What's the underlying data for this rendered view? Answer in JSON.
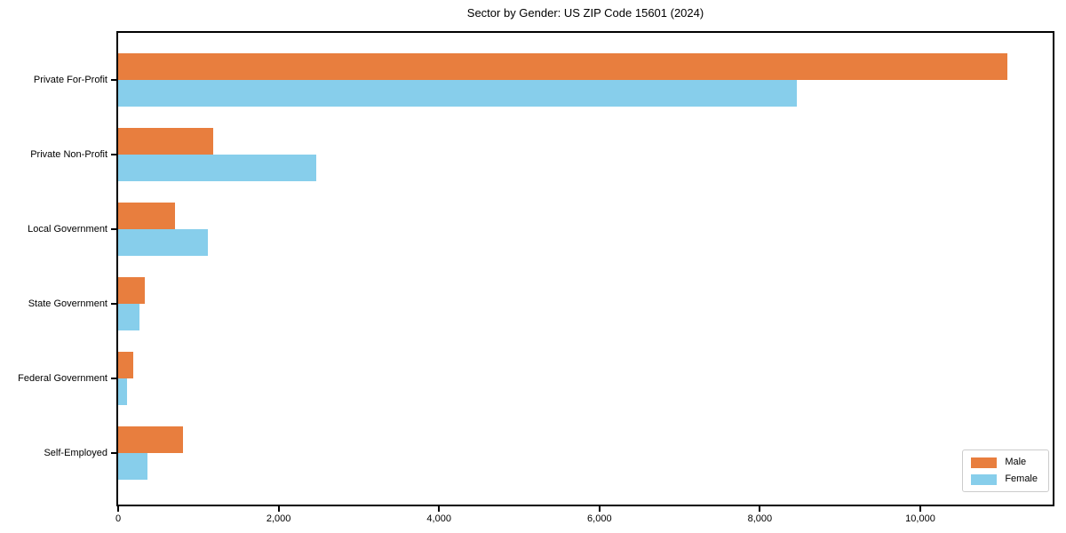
{
  "chart_data": {
    "type": "bar",
    "orientation": "horizontal",
    "title": "Sector by Gender: US ZIP Code 15601 (2024)",
    "categories": [
      "Private For-Profit",
      "Private Non-Profit",
      "Local Government",
      "State Government",
      "Federal Government",
      "Self-Employed"
    ],
    "series": [
      {
        "name": "Male",
        "color": "#e87e3e",
        "values": [
          11080,
          1180,
          705,
          330,
          190,
          805
        ]
      },
      {
        "name": "Female",
        "color": "#87ceeb",
        "values": [
          8460,
          2470,
          1115,
          265,
          110,
          365
        ]
      }
    ],
    "xlabel": "",
    "ylabel": "",
    "xlim": [
      0,
      11650
    ],
    "xticks": [
      0,
      2000,
      4000,
      6000,
      8000,
      10000
    ],
    "xtick_labels": [
      "0",
      "2,000",
      "4,000",
      "6,000",
      "8,000",
      "10,000"
    ],
    "grid": false,
    "legend_position": "lower right",
    "frame": true,
    "background_color": "#ffffff",
    "axis_color": "#000000"
  }
}
